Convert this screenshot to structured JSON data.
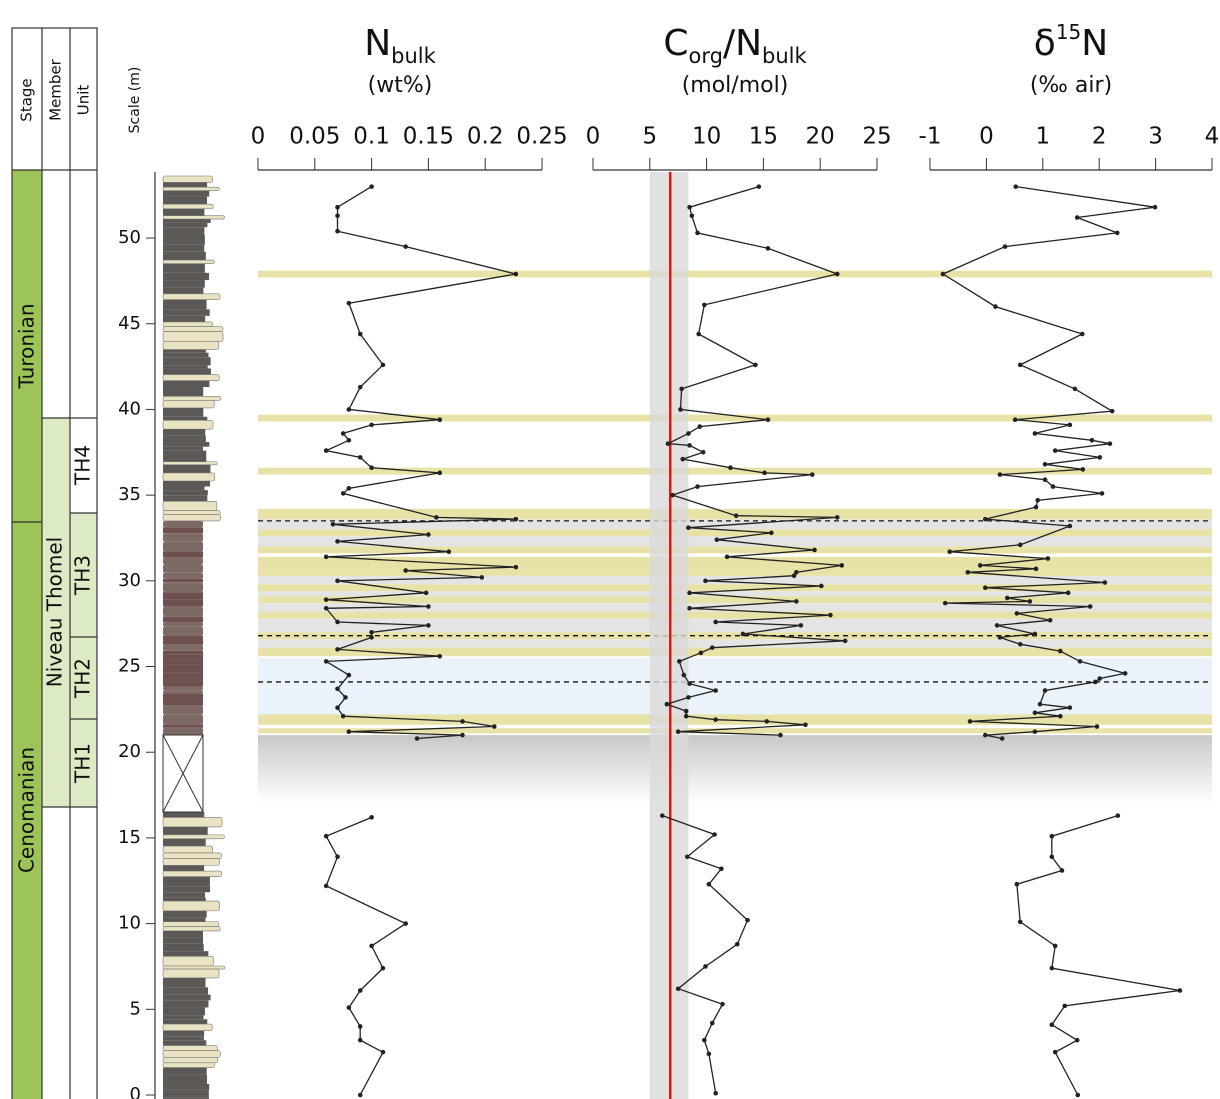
{
  "stratigraphy": {
    "headers": [
      "Stage",
      "Member",
      "Unit"
    ],
    "stages": [
      "Turonian",
      "Cenomanian"
    ],
    "members": [
      "Niveau Thomel"
    ],
    "units": [
      "TH4",
      "TH3",
      "TH2",
      "TH1"
    ]
  },
  "depth_axis": {
    "label": "Scale (m)",
    "ylim": [
      0,
      54
    ],
    "yticks": [
      0,
      5,
      10,
      15,
      20,
      25,
      30,
      35,
      40,
      45,
      50
    ]
  },
  "highlights": {
    "bands": [
      {
        "color": "#eaf3f9",
        "ranges": [
          [
            22.2,
            25.5
          ]
        ]
      },
      {
        "color": "#e4e4e4",
        "ranges": [
          [
            33.0,
            33.6
          ],
          [
            32.0,
            32.6
          ],
          [
            29.8,
            30.3
          ],
          [
            29.1,
            29.4
          ],
          [
            28.2,
            28.7
          ],
          [
            27.0,
            27.8
          ],
          [
            26.1,
            26.6
          ]
        ]
      },
      {
        "color": "#e9e2a6",
        "ranges": [
          [
            47.7,
            48.1
          ],
          [
            39.3,
            39.7
          ],
          [
            36.2,
            36.6
          ],
          [
            33.6,
            34.2
          ],
          [
            32.6,
            33.0
          ],
          [
            31.6,
            32.0
          ],
          [
            30.3,
            31.4
          ],
          [
            29.4,
            29.8
          ],
          [
            28.7,
            29.1
          ],
          [
            27.8,
            28.2
          ],
          [
            26.6,
            27.0
          ],
          [
            25.6,
            26.1
          ],
          [
            21.6,
            22.2
          ],
          [
            21.1,
            21.4
          ]
        ]
      }
    ],
    "fade": {
      "color": "#c8c8c8",
      "range": [
        17,
        21
      ]
    },
    "dashed_lines": [
      33.5,
      26.8,
      24.1
    ]
  },
  "chart_data": [
    {
      "type": "line",
      "title_parts": [
        {
          "text": "N"
        },
        {
          "text": "bulk",
          "sub": true
        }
      ],
      "subtitle": "(wt%)",
      "xlim": [
        0,
        0.25
      ],
      "xticks": [
        0,
        0.05,
        0.1,
        0.15,
        0.2,
        0.25
      ],
      "color": "#222222",
      "y": [
        53.0,
        51.8,
        51.3,
        50.4,
        49.5,
        47.9,
        46.2,
        44.4,
        42.6,
        41.3,
        40.0,
        39.4,
        39.1,
        38.6,
        38.2,
        37.6,
        37.2,
        36.6,
        36.3,
        35.4,
        35.1,
        33.7,
        33.6,
        33.3,
        32.7,
        32.3,
        31.7,
        31.4,
        30.8,
        30.6,
        30.2,
        30.0,
        29.3,
        28.9,
        28.5,
        28.4,
        27.6,
        27.4,
        27.0,
        26.7,
        26.0,
        25.6,
        25.3,
        24.5,
        23.7,
        23.2,
        22.6,
        22.1,
        21.8,
        21.5,
        21.2,
        21.0,
        20.8,
        null,
        16.2,
        15.1,
        13.9,
        12.2,
        10.0,
        8.7,
        7.4,
        6.1,
        5.1,
        4.0,
        3.2,
        2.5,
        0.0
      ],
      "values": [
        0.1,
        0.07,
        0.07,
        0.07,
        0.13,
        0.227,
        0.08,
        0.09,
        0.11,
        0.09,
        0.08,
        0.16,
        0.1,
        0.075,
        0.08,
        0.06,
        0.09,
        0.1,
        0.16,
        0.08,
        0.075,
        0.157,
        0.227,
        0.066,
        0.15,
        0.07,
        0.168,
        0.06,
        0.227,
        0.13,
        0.197,
        0.07,
        0.148,
        0.06,
        0.15,
        0.06,
        0.07,
        0.15,
        0.1,
        0.1,
        0.07,
        0.16,
        0.06,
        0.08,
        0.07,
        0.077,
        0.07,
        0.075,
        0.18,
        0.208,
        0.08,
        0.18,
        0.14,
        null,
        0.1,
        0.06,
        0.07,
        0.06,
        0.13,
        0.1,
        0.11,
        0.09,
        0.08,
        0.09,
        0.09,
        0.11,
        0.09
      ]
    },
    {
      "type": "line",
      "title_parts": [
        {
          "text": "C"
        },
        {
          "text": "org",
          "sub": true
        },
        {
          "text": "/N"
        },
        {
          "text": "bulk",
          "sub": true
        }
      ],
      "subtitle": "(mol/mol)",
      "xlim": [
        0,
        25
      ],
      "xticks": [
        0,
        5,
        10,
        15,
        20,
        25
      ],
      "color": "#222222",
      "reference_band": {
        "range": [
          5,
          8.4
        ],
        "color": "#dadada"
      },
      "reference_line": {
        "value": 6.8,
        "color": "#e01515"
      },
      "y": [
        53.0,
        51.8,
        51.3,
        50.3,
        49.4,
        47.9,
        46.1,
        44.4,
        42.6,
        41.2,
        40.0,
        39.4,
        39.0,
        38.6,
        38.0,
        37.9,
        37.5,
        37.1,
        36.6,
        36.3,
        36.2,
        35.5,
        35.0,
        33.8,
        33.7,
        33.1,
        32.8,
        32.4,
        31.8,
        31.4,
        30.9,
        30.5,
        30.3,
        30.0,
        29.7,
        29.3,
        28.8,
        28.4,
        28.0,
        27.6,
        27.4,
        26.9,
        26.5,
        26.1,
        25.8,
        25.3,
        24.5,
        24.0,
        23.6,
        23.2,
        22.8,
        22.4,
        22.1,
        21.9,
        21.8,
        21.6,
        21.2,
        21.0,
        null,
        16.3,
        15.2,
        13.9,
        13.2,
        12.3,
        10.2,
        8.8,
        7.5,
        6.2,
        5.3,
        4.2,
        3.2,
        2.4,
        0.1
      ],
      "values": [
        14.6,
        8.5,
        8.7,
        9.2,
        15.4,
        21.5,
        9.8,
        9.3,
        14.3,
        7.8,
        7.7,
        15.4,
        9.4,
        8.4,
        6.6,
        8.5,
        9.7,
        7.9,
        12.1,
        15.1,
        19.3,
        9.2,
        7.0,
        12.6,
        21.5,
        8.4,
        15.7,
        10.9,
        19.5,
        11.8,
        21.9,
        17.9,
        17.7,
        9.9,
        20.1,
        8.5,
        17.9,
        8.5,
        20.9,
        10.8,
        18.3,
        13.2,
        22.2,
        10.5,
        9.5,
        7.6,
        8.0,
        8.5,
        10.8,
        8.4,
        6.5,
        8.2,
        8.2,
        10.8,
        15.3,
        18.7,
        7.5,
        16.5,
        null,
        6.1,
        10.7,
        8.3,
        11.3,
        10.2,
        13.6,
        12.7,
        9.9,
        7.5,
        11.4,
        10.5,
        9.8,
        10.2,
        10.8
      ]
    },
    {
      "type": "line",
      "title_parts": [
        {
          "text": "δ"
        },
        {
          "text": "15",
          "sup": true
        },
        {
          "text": "N"
        }
      ],
      "subtitle": "(‰ air)",
      "xlim": [
        -1,
        4
      ],
      "xticks": [
        -1,
        0,
        1,
        2,
        3,
        4
      ],
      "color": "#222222",
      "y": [
        53.0,
        51.8,
        51.2,
        50.3,
        49.5,
        47.9,
        46.0,
        44.4,
        42.6,
        41.2,
        39.9,
        39.4,
        39.1,
        38.6,
        38.2,
        38.0,
        37.6,
        37.2,
        36.8,
        36.5,
        36.2,
        35.9,
        35.5,
        35.1,
        34.7,
        34.3,
        33.6,
        33.2,
        32.1,
        31.7,
        31.3,
        30.9,
        30.7,
        30.5,
        29.9,
        29.6,
        29.3,
        29.0,
        28.8,
        28.7,
        28.5,
        28.1,
        27.7,
        27.4,
        26.9,
        26.7,
        26.3,
        25.9,
        25.3,
        24.6,
        24.3,
        24.1,
        23.6,
        22.8,
        22.6,
        22.3,
        22.1,
        21.8,
        21.5,
        21.2,
        21.0,
        20.8,
        null,
        16.3,
        15.1,
        13.9,
        13.1,
        12.3,
        10.1,
        8.7,
        7.4,
        6.1,
        5.2,
        4.1,
        3.2,
        2.5,
        0.0
      ],
      "values": [
        0.52,
        2.99,
        1.61,
        2.32,
        0.33,
        -0.77,
        0.16,
        1.7,
        0.6,
        1.57,
        2.23,
        0.51,
        1.48,
        0.86,
        1.87,
        2.19,
        1.22,
        2.01,
        1.04,
        1.71,
        0.24,
        1.04,
        1.18,
        2.05,
        0.91,
        0.88,
        -0.02,
        1.48,
        0.6,
        -0.65,
        1.09,
        -0.11,
        0.88,
        -0.33,
        2.1,
        -0.02,
        1.45,
        0.37,
        0.77,
        -0.73,
        1.84,
        0.54,
        1.13,
        0.19,
        0.86,
        0.24,
        0.6,
        1.31,
        1.66,
        2.46,
        2.01,
        1.93,
        1.04,
        0.95,
        1.48,
        0.86,
        1.31,
        -0.29,
        1.96,
        0.86,
        -0.02,
        0.28,
        null,
        2.33,
        1.16,
        1.16,
        1.34,
        0.54,
        0.6,
        1.22,
        1.16,
        3.43,
        1.39,
        1.16,
        1.61,
        1.22,
        1.62
      ]
    }
  ]
}
